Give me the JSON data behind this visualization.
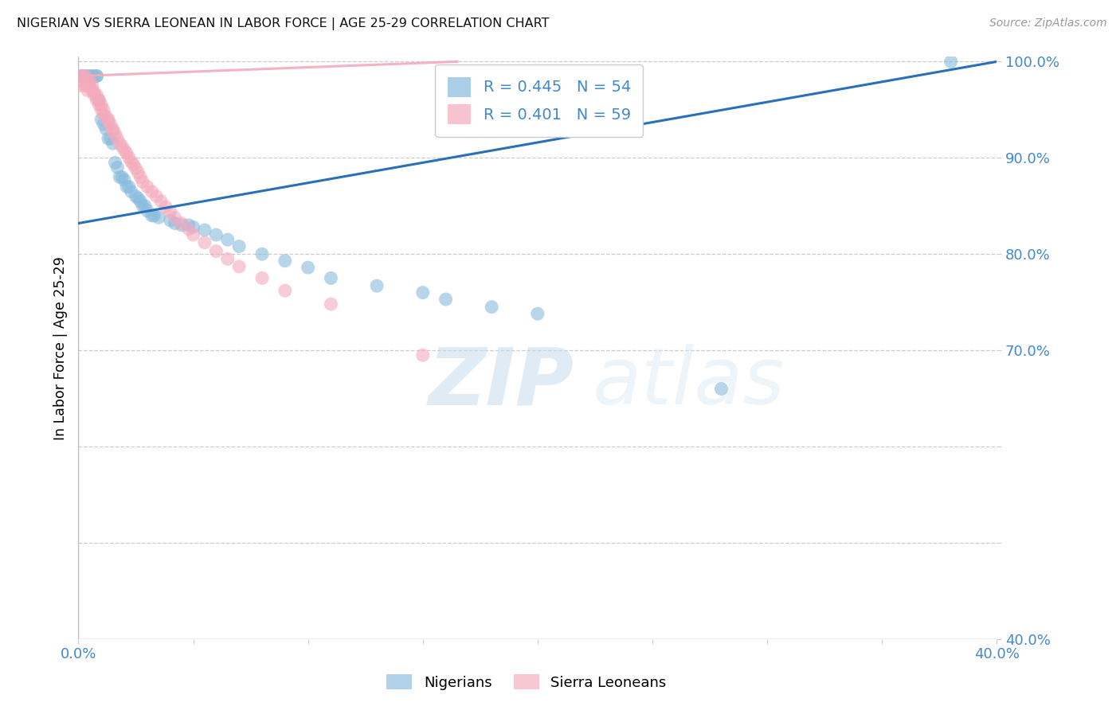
{
  "title": "NIGERIAN VS SIERRA LEONEAN IN LABOR FORCE | AGE 25-29 CORRELATION CHART",
  "source": "Source: ZipAtlas.com",
  "ylabel": "In Labor Force | Age 25-29",
  "watermark_zip": "ZIP",
  "watermark_atlas": "atlas",
  "xmin": 0.0,
  "xmax": 0.4,
  "ymin": 0.4,
  "ymax": 1.005,
  "R_nigerian": 0.445,
  "N_nigerian": 54,
  "R_sl": 0.401,
  "N_sl": 59,
  "nigerian_color": "#88bbdd",
  "sl_color": "#f4aabb",
  "trend_blue": "#2970b8",
  "trend_pink": "#cc4466",
  "nigerian_x": [
    0.001,
    0.002,
    0.002,
    0.003,
    0.004,
    0.005,
    0.006,
    0.007,
    0.008,
    0.008,
    0.009,
    0.01,
    0.011,
    0.012,
    0.013,
    0.014,
    0.015,
    0.016,
    0.017,
    0.018,
    0.019,
    0.02,
    0.021,
    0.022,
    0.023,
    0.025,
    0.026,
    0.027,
    0.028,
    0.029,
    0.03,
    0.032,
    0.033,
    0.035,
    0.04,
    0.042,
    0.045,
    0.048,
    0.05,
    0.055,
    0.06,
    0.065,
    0.07,
    0.08,
    0.09,
    0.1,
    0.11,
    0.13,
    0.15,
    0.16,
    0.18,
    0.2,
    0.28,
    0.38
  ],
  "nigerian_y": [
    0.985,
    0.985,
    0.985,
    0.985,
    0.985,
    0.985,
    0.985,
    0.985,
    0.985,
    0.985,
    0.96,
    0.94,
    0.935,
    0.93,
    0.92,
    0.92,
    0.915,
    0.895,
    0.89,
    0.88,
    0.88,
    0.877,
    0.87,
    0.87,
    0.865,
    0.86,
    0.858,
    0.855,
    0.85,
    0.85,
    0.845,
    0.84,
    0.84,
    0.838,
    0.835,
    0.832,
    0.83,
    0.83,
    0.828,
    0.825,
    0.82,
    0.815,
    0.808,
    0.8,
    0.793,
    0.786,
    0.775,
    0.767,
    0.76,
    0.753,
    0.745,
    0.738,
    0.66,
    1.0
  ],
  "sl_x": [
    0.001,
    0.001,
    0.002,
    0.002,
    0.003,
    0.003,
    0.004,
    0.004,
    0.005,
    0.005,
    0.006,
    0.006,
    0.007,
    0.007,
    0.008,
    0.008,
    0.009,
    0.009,
    0.01,
    0.01,
    0.011,
    0.011,
    0.012,
    0.013,
    0.013,
    0.014,
    0.015,
    0.015,
    0.016,
    0.017,
    0.018,
    0.019,
    0.02,
    0.021,
    0.022,
    0.023,
    0.024,
    0.025,
    0.026,
    0.027,
    0.028,
    0.03,
    0.032,
    0.034,
    0.036,
    0.038,
    0.04,
    0.042,
    0.045,
    0.048,
    0.05,
    0.055,
    0.06,
    0.065,
    0.07,
    0.08,
    0.09,
    0.11,
    0.15
  ],
  "sl_y": [
    0.985,
    0.975,
    0.985,
    0.98,
    0.985,
    0.975,
    0.98,
    0.97,
    0.98,
    0.975,
    0.975,
    0.97,
    0.968,
    0.965,
    0.965,
    0.96,
    0.96,
    0.955,
    0.955,
    0.95,
    0.95,
    0.945,
    0.943,
    0.94,
    0.938,
    0.935,
    0.93,
    0.928,
    0.925,
    0.92,
    0.915,
    0.912,
    0.908,
    0.905,
    0.9,
    0.896,
    0.893,
    0.889,
    0.885,
    0.88,
    0.875,
    0.87,
    0.865,
    0.86,
    0.855,
    0.849,
    0.844,
    0.838,
    0.832,
    0.826,
    0.82,
    0.812,
    0.803,
    0.795,
    0.787,
    0.775,
    0.762,
    0.748,
    0.695
  ],
  "trend_nig_x0": 0.0,
  "trend_nig_y0": 0.832,
  "trend_nig_x1": 0.4,
  "trend_nig_y1": 1.0,
  "trend_sl_x0": 0.0,
  "trend_sl_y0": 0.985,
  "trend_sl_x1": 0.165,
  "trend_sl_y1": 1.0
}
